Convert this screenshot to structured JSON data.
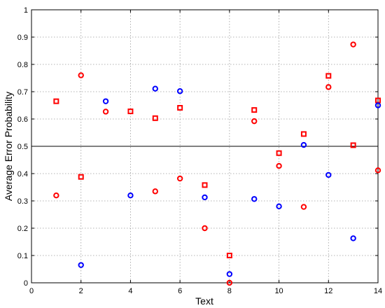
{
  "chart_data": {
    "type": "scatter",
    "xlabel": "Text",
    "ylabel": "Average Error Probability",
    "xlim": [
      0,
      14
    ],
    "ylim": [
      0,
      1
    ],
    "xticks": [
      0,
      2,
      4,
      6,
      8,
      10,
      12,
      14
    ],
    "yticks": [
      0,
      0.1,
      0.2,
      0.3,
      0.4,
      0.5,
      0.6,
      0.7,
      0.8,
      0.9,
      1
    ],
    "grid": true,
    "reference_line": 0.5,
    "series": [
      {
        "marker": "square",
        "color": "#ff0000",
        "points": [
          [
            1,
            0.665
          ],
          [
            2,
            0.388
          ],
          [
            4,
            0.628
          ],
          [
            5,
            0.603
          ],
          [
            6,
            0.641
          ],
          [
            7,
            0.358
          ],
          [
            8,
            0.1
          ],
          [
            9,
            0.633
          ],
          [
            10,
            0.475
          ],
          [
            11,
            0.545
          ],
          [
            12,
            0.758
          ],
          [
            13,
            0.504
          ],
          [
            14,
            0.668
          ]
        ]
      },
      {
        "marker": "circle",
        "color": "#ff0000",
        "points": [
          [
            1,
            0.32
          ],
          [
            2,
            0.76
          ],
          [
            3,
            0.627
          ],
          [
            5,
            0.335
          ],
          [
            6,
            0.382
          ],
          [
            7,
            0.2
          ],
          [
            8,
            0.0
          ],
          [
            9,
            0.592
          ],
          [
            10,
            0.428
          ],
          [
            11,
            0.278
          ],
          [
            12,
            0.717
          ],
          [
            13,
            0.873
          ],
          [
            14,
            0.412
          ]
        ]
      },
      {
        "marker": "circle",
        "color": "#0000ff",
        "points": [
          [
            2,
            0.065
          ],
          [
            3,
            0.665
          ],
          [
            4,
            0.32
          ],
          [
            5,
            0.711
          ],
          [
            6,
            0.702
          ],
          [
            7,
            0.313
          ],
          [
            8,
            0.032
          ],
          [
            9,
            0.307
          ],
          [
            10,
            0.28
          ],
          [
            11,
            0.505
          ],
          [
            12,
            0.395
          ],
          [
            13,
            0.163
          ],
          [
            14,
            0.65
          ]
        ]
      }
    ]
  }
}
